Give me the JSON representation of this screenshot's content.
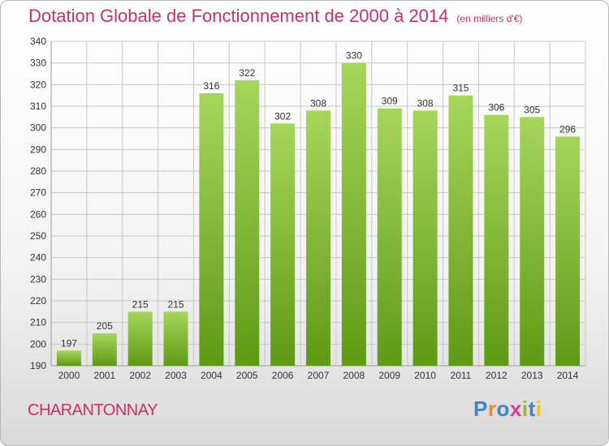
{
  "title": "Dotation Globale de Fonctionnement de 2000 à 2014",
  "unit": "(en milliers d'€)",
  "commune": "CHARANTONNAY",
  "brand": "Proxiti",
  "colors": {
    "title": "#cc2f66",
    "bar_top": "#a6d65a",
    "bar_bottom": "#5f9a14",
    "grid": "#c8c8c8",
    "axis_text": "#333333",
    "brand_letters": [
      "#3b86c6",
      "#f08a1c",
      "#3b86c6",
      "#e23a8c",
      "#8cbf2b",
      "#3b86c6",
      "#f2c21a"
    ]
  },
  "chart_data": {
    "type": "bar",
    "categories": [
      "2000",
      "2001",
      "2002",
      "2003",
      "2004",
      "2005",
      "2006",
      "2007",
      "2008",
      "2009",
      "2010",
      "2011",
      "2012",
      "2013",
      "2014"
    ],
    "values": [
      197,
      205,
      215,
      215,
      316,
      322,
      302,
      308,
      330,
      309,
      308,
      315,
      306,
      305,
      296
    ],
    "title": "Dotation Globale de Fonctionnement de 2000 à 2014",
    "ylim": [
      190,
      340
    ],
    "yticks": [
      190,
      200,
      210,
      220,
      230,
      240,
      250,
      260,
      270,
      280,
      290,
      300,
      310,
      320,
      330,
      340
    ],
    "grid": true,
    "data_labels": true
  }
}
